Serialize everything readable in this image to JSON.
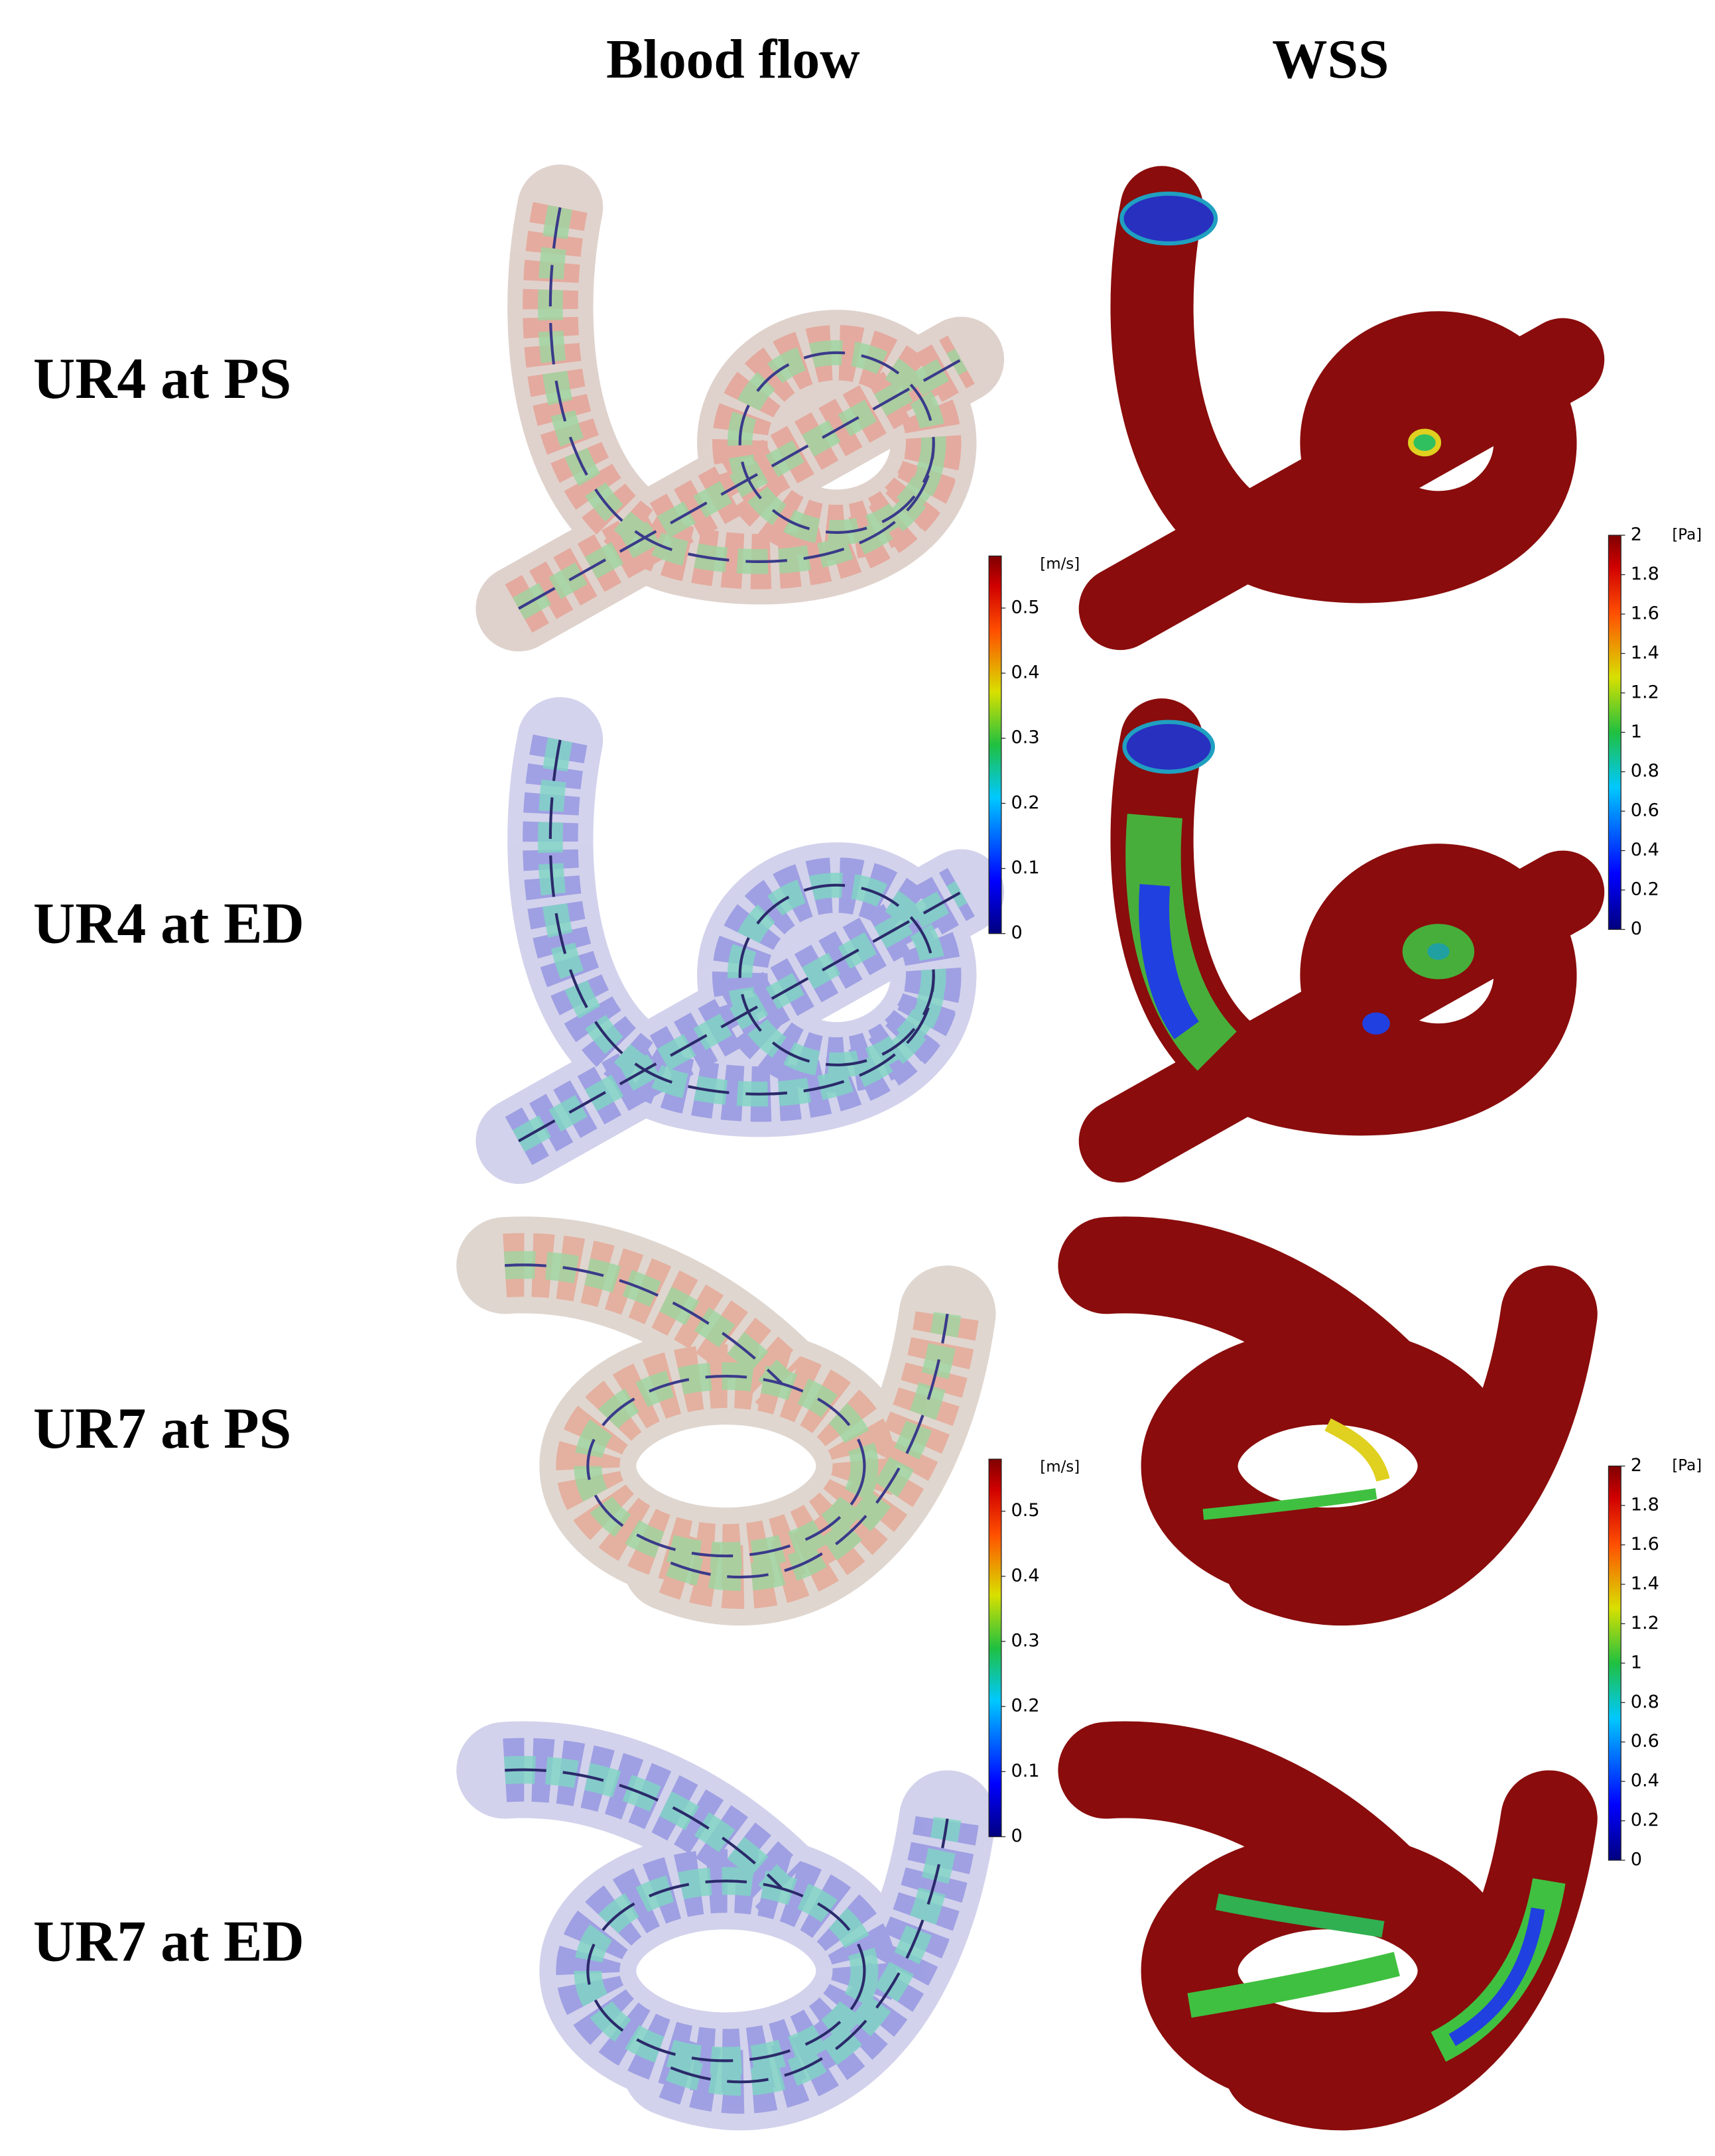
{
  "column_headers": [
    "Blood flow",
    "WSS"
  ],
  "row_labels": [
    "UR4 at PS",
    "UR4 at ED",
    "UR7 at PS",
    "UR7 at ED"
  ],
  "colorbars": [
    {
      "unit": "[m/s]",
      "range": [
        0,
        0.58
      ],
      "ticks": [
        0,
        0.1,
        0.2,
        0.3,
        0.4,
        0.5
      ]
    },
    {
      "unit": "[Pa]",
      "range": [
        0,
        2
      ],
      "ticks": [
        0,
        0.2,
        0.4,
        0.6,
        0.8,
        1,
        1.2,
        1.4,
        1.6,
        1.8,
        2
      ]
    },
    {
      "unit": "[m/s]",
      "range": [
        0,
        0.58
      ],
      "ticks": [
        0,
        0.1,
        0.2,
        0.3,
        0.4,
        0.5
      ]
    },
    {
      "unit": "[Pa]",
      "range": [
        0,
        2
      ],
      "ticks": [
        0,
        0.2,
        0.4,
        0.6,
        0.8,
        1,
        1.2,
        1.4,
        1.6,
        1.8,
        2
      ]
    }
  ]
}
